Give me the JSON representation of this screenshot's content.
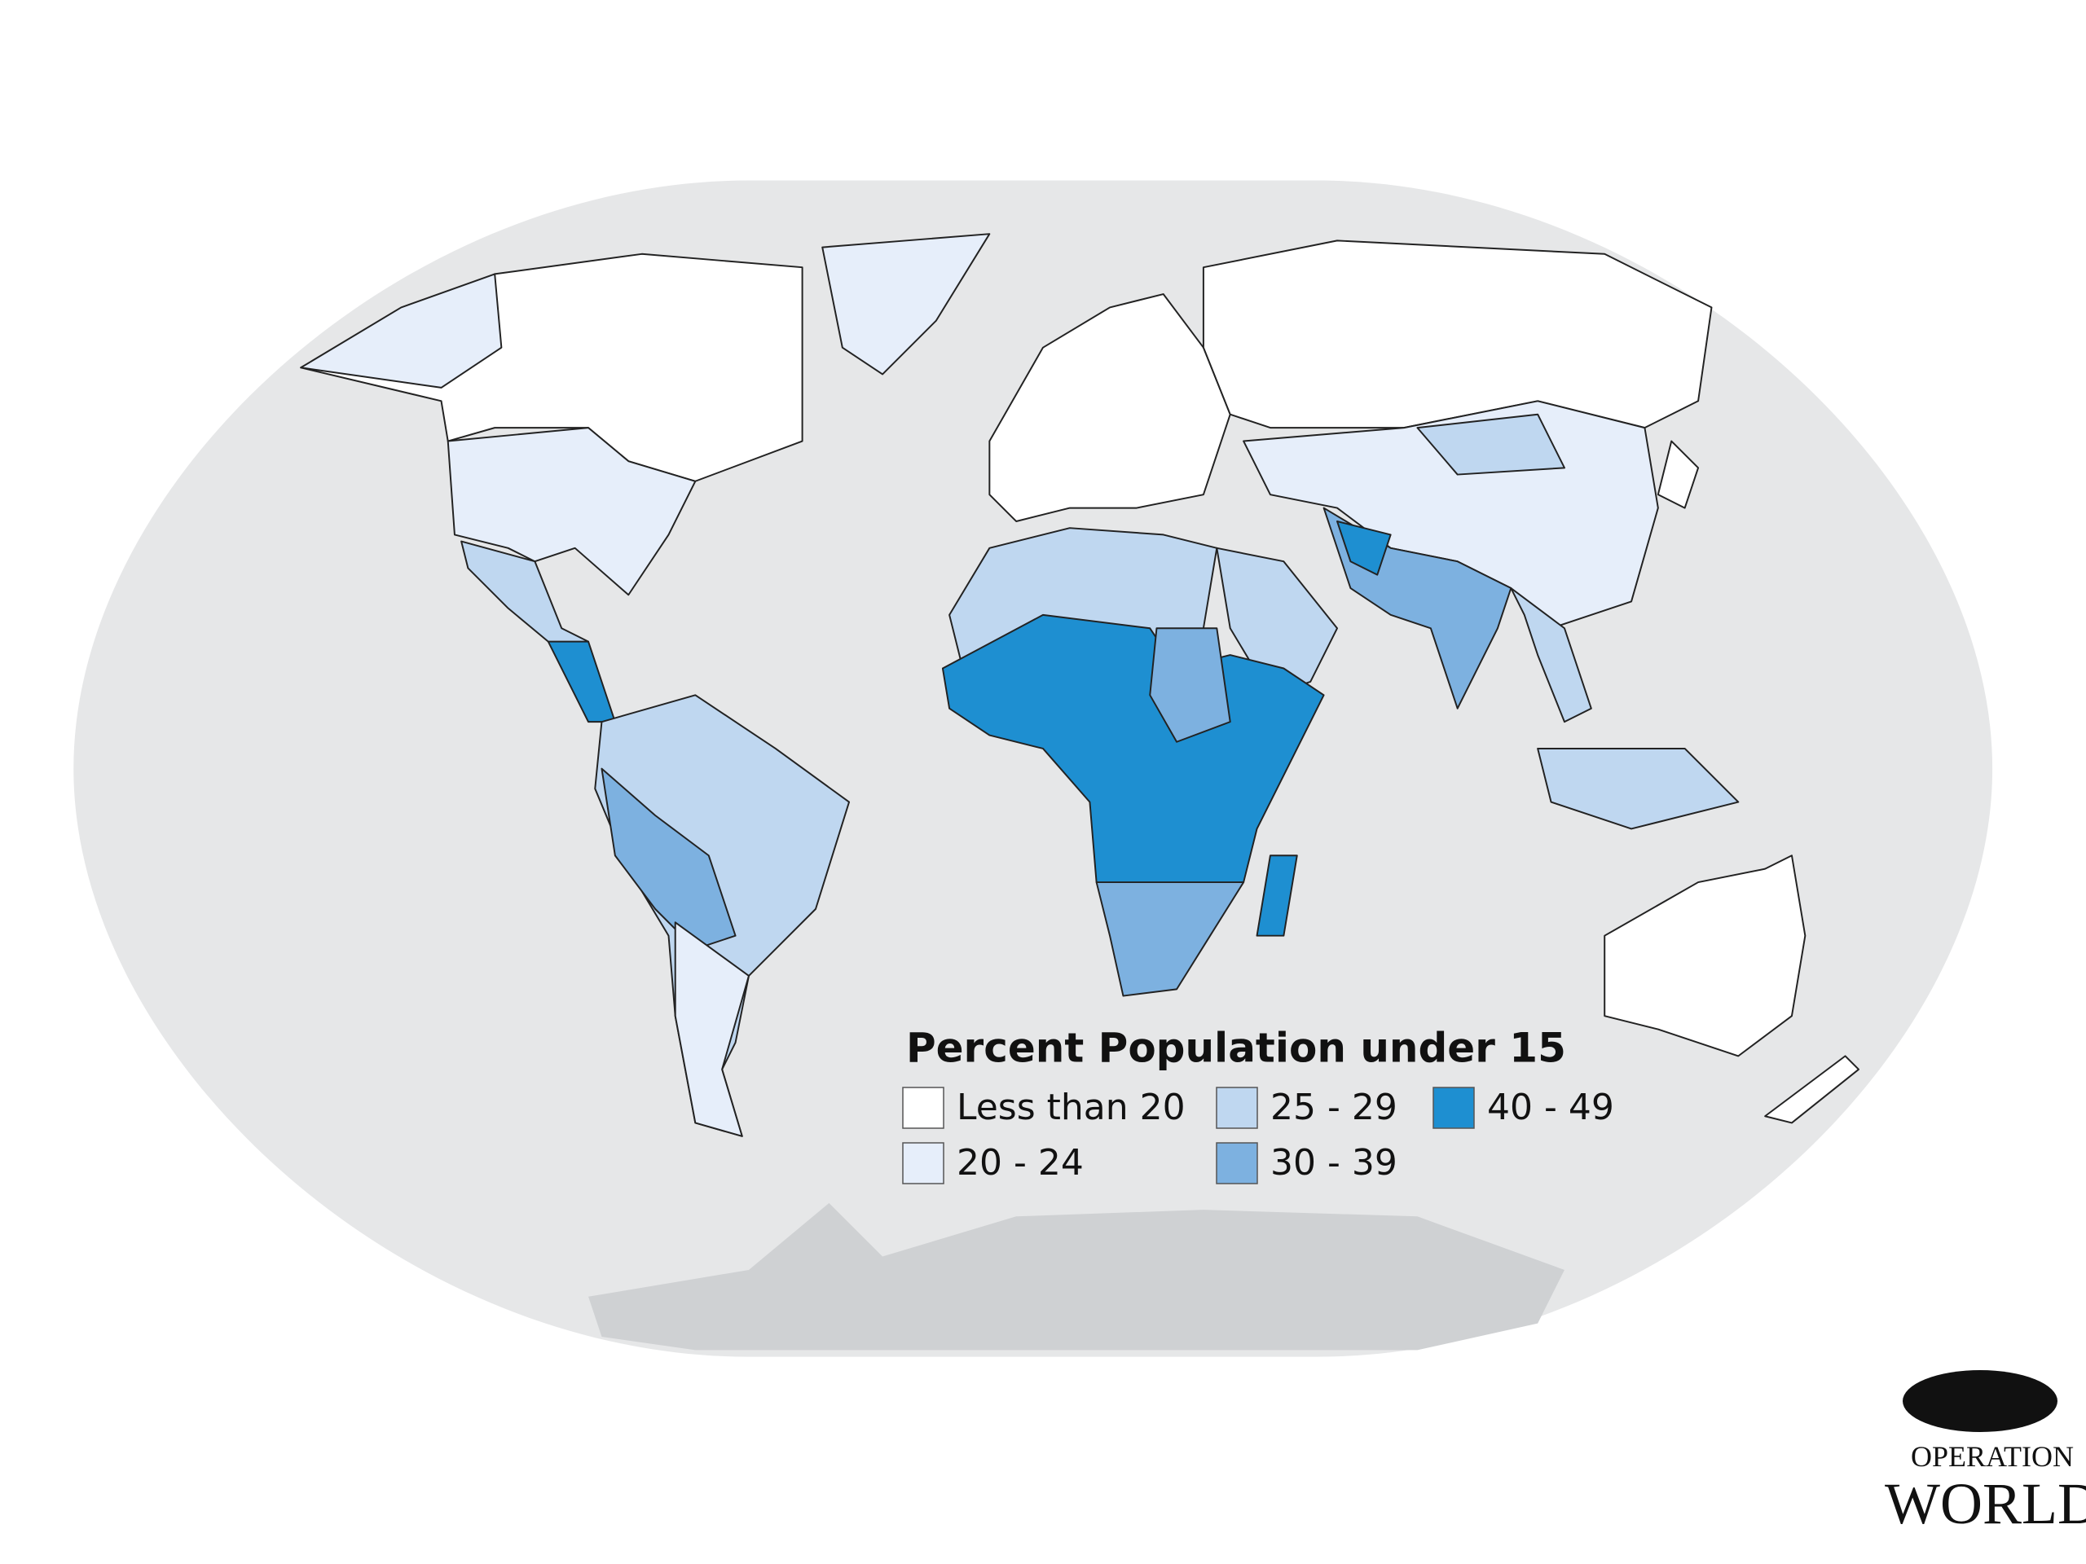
{
  "legend": {
    "title": "Percent Population under 15",
    "items": [
      {
        "label": "Less than 20",
        "color": "#ffffff"
      },
      {
        "label": "20 - 24",
        "color": "#e6eefa"
      },
      {
        "label": "25 - 29",
        "color": "#bfd7f0"
      },
      {
        "label": "30 - 39",
        "color": "#7db1e0"
      },
      {
        "label": "40 - 49",
        "color": "#1e8fd1"
      }
    ]
  },
  "logo": {
    "line1": "OPERATION",
    "line2": "WORLD"
  }
}
